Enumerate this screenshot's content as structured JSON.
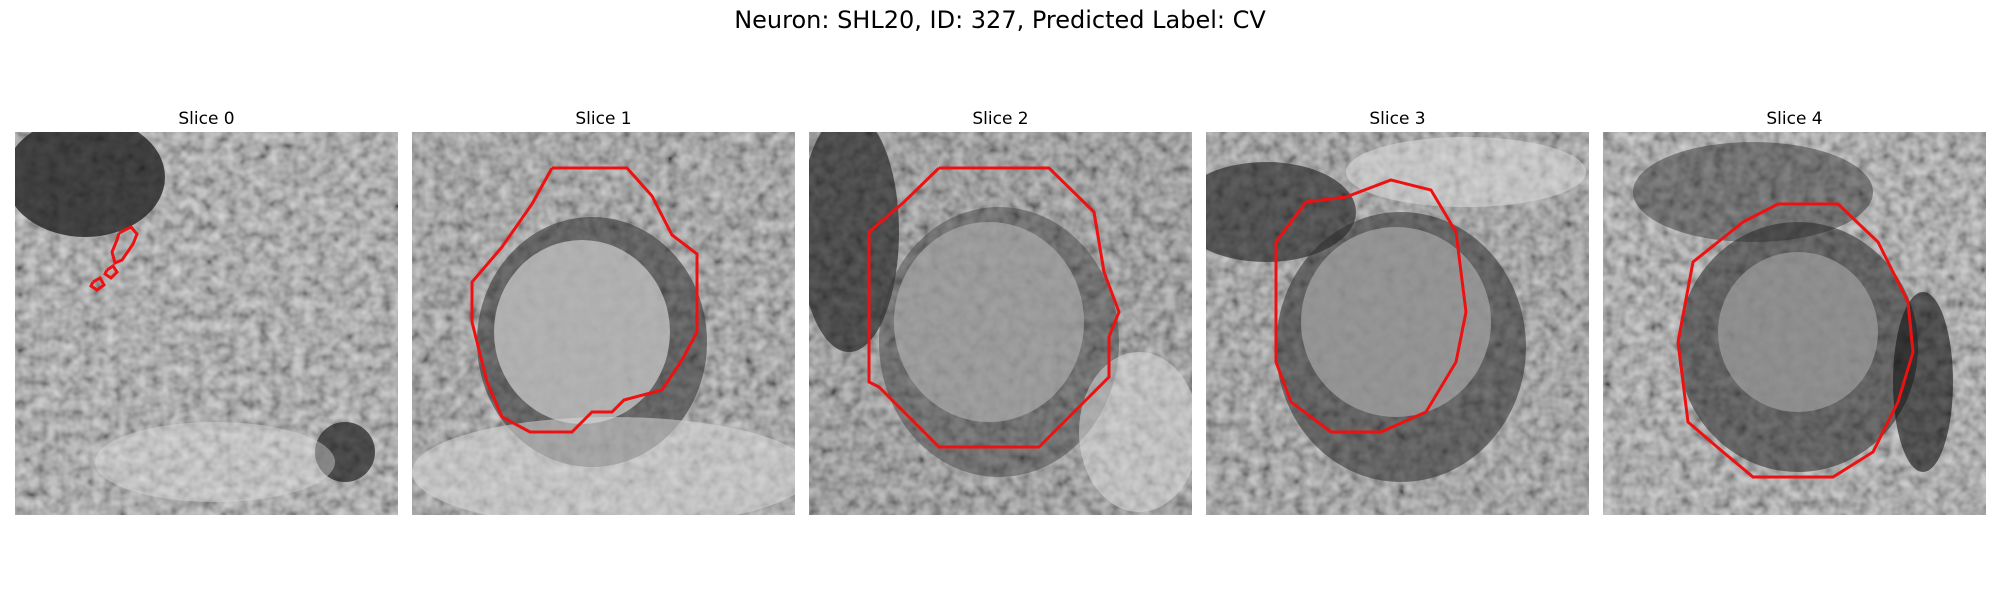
{
  "figure": {
    "title": "Neuron: SHL20, ID: 327, Predicted Label: CV"
  },
  "panels": [
    {
      "title": "Slice 0",
      "contour_color": "#ee1111"
    },
    {
      "title": "Slice 1",
      "contour_color": "#ee1111"
    },
    {
      "title": "Slice 2",
      "contour_color": "#ee1111"
    },
    {
      "title": "Slice 3",
      "contour_color": "#ee1111"
    },
    {
      "title": "Slice 4",
      "contour_color": "#ee1111"
    }
  ]
}
